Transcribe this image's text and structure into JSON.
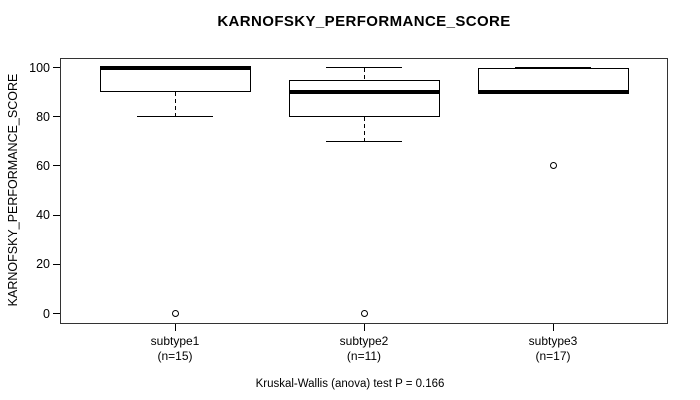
{
  "chart_data": {
    "type": "boxplot",
    "title": "KARNOFSKY_PERFORMANCE_SCORE",
    "ylabel": "KARNOFSKY_PERFORMANCE_SCORE",
    "caption": "Kruskal-Wallis (anova) test P = 0.166",
    "ylim": [
      0,
      100
    ],
    "yticks": [
      0,
      20,
      40,
      60,
      80,
      100
    ],
    "grid": false,
    "legend": null,
    "groups": [
      {
        "label": "subtype1",
        "n_label": "(n=15)",
        "n": 15,
        "whisker_low": 80,
        "q1": 90,
        "median": 100,
        "q3": 100,
        "whisker_high": 100,
        "outliers": [
          0
        ]
      },
      {
        "label": "subtype2",
        "n_label": "(n=11)",
        "n": 11,
        "whisker_low": 70,
        "q1": 80,
        "median": 90,
        "q3": 95,
        "whisker_high": 100,
        "outliers": [
          0
        ]
      },
      {
        "label": "subtype3",
        "n_label": "(n=17)",
        "n": 17,
        "whisker_low": 90,
        "q1": 90,
        "median": 90,
        "q3": 100,
        "whisker_high": 100,
        "outliers": [
          60
        ]
      }
    ],
    "colors": {
      "line": "#000000",
      "background": "#ffffff",
      "frame": "#333333"
    }
  }
}
